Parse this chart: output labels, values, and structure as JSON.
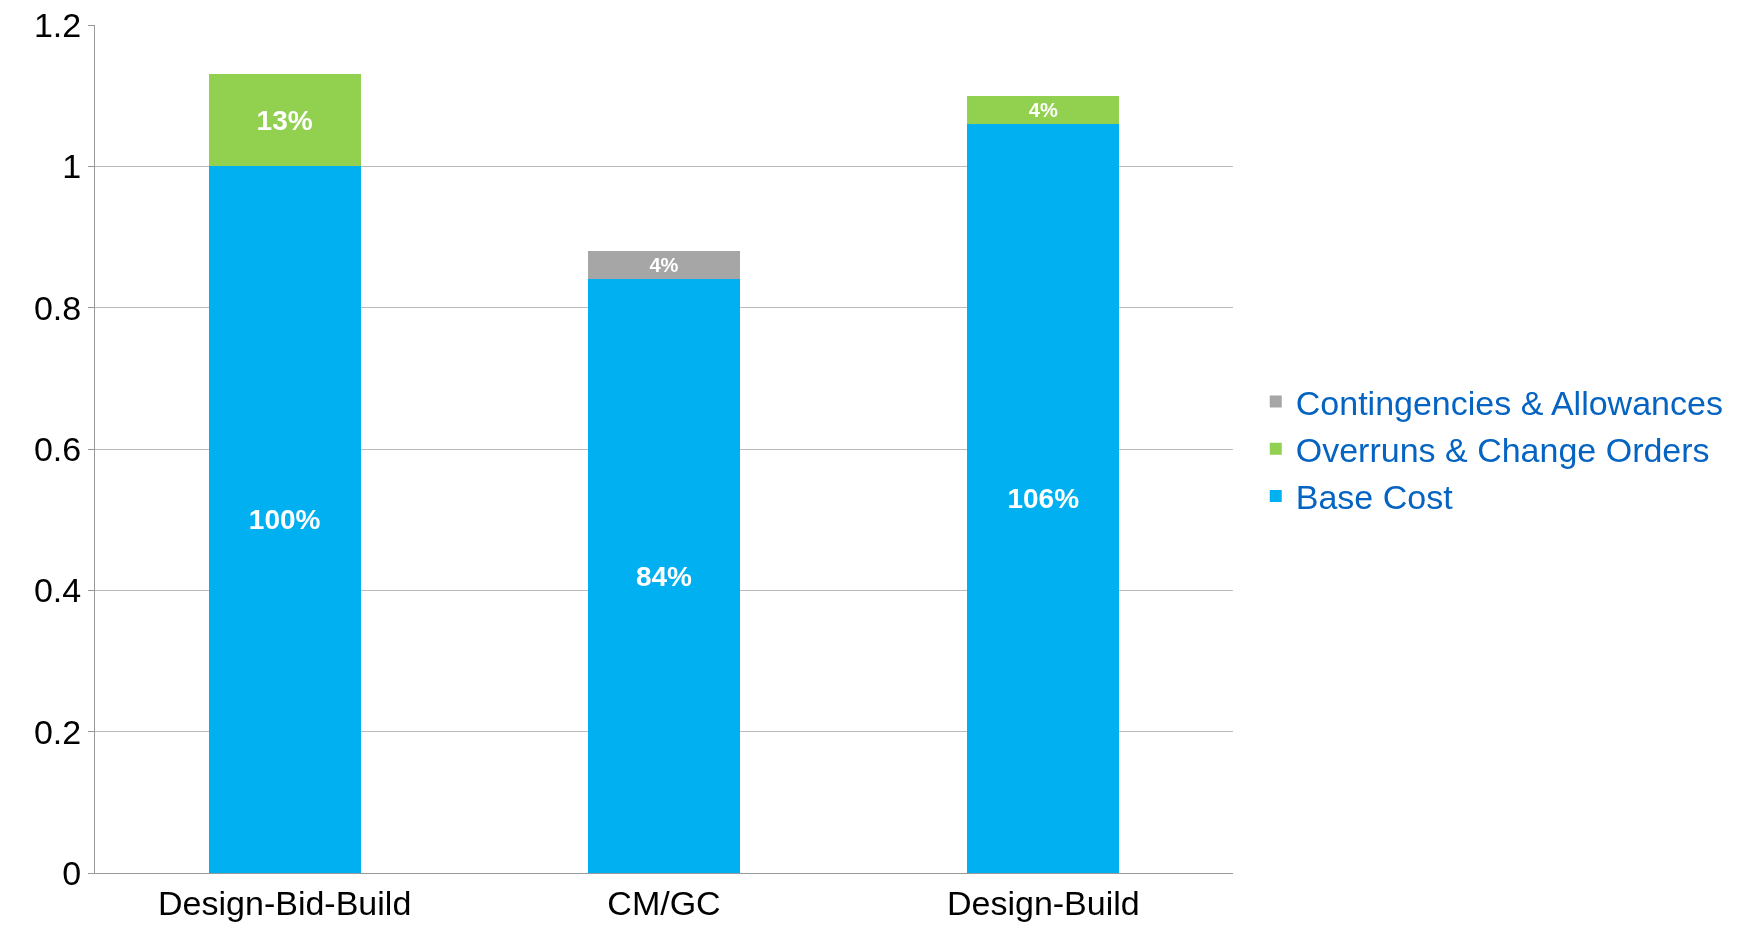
{
  "chart_data": {
    "type": "bar",
    "stacked": true,
    "categories": [
      "Design-Bid-Build",
      "CM/GC",
      "Design-Build"
    ],
    "series": [
      {
        "name": "Base Cost",
        "color": "#00b0f0",
        "values": [
          1.0,
          0.84,
          1.06
        ],
        "value_labels": [
          "100%",
          "84%",
          "106%"
        ]
      },
      {
        "name": "Overruns & Change Orders",
        "color": "#92d050",
        "values": [
          0.13,
          null,
          0.04
        ],
        "value_labels": [
          "13%",
          null,
          "4%"
        ]
      },
      {
        "name": "Contingencies & Allowances",
        "color": "#a6a6a6",
        "values": [
          null,
          0.04,
          null
        ],
        "value_labels": [
          null,
          "4%",
          null
        ]
      }
    ],
    "ylim": [
      0,
      1.2
    ],
    "yticks": [
      0,
      0.2,
      0.4,
      0.6,
      0.8,
      1,
      1.2
    ],
    "grid": "y",
    "legend": "right"
  }
}
